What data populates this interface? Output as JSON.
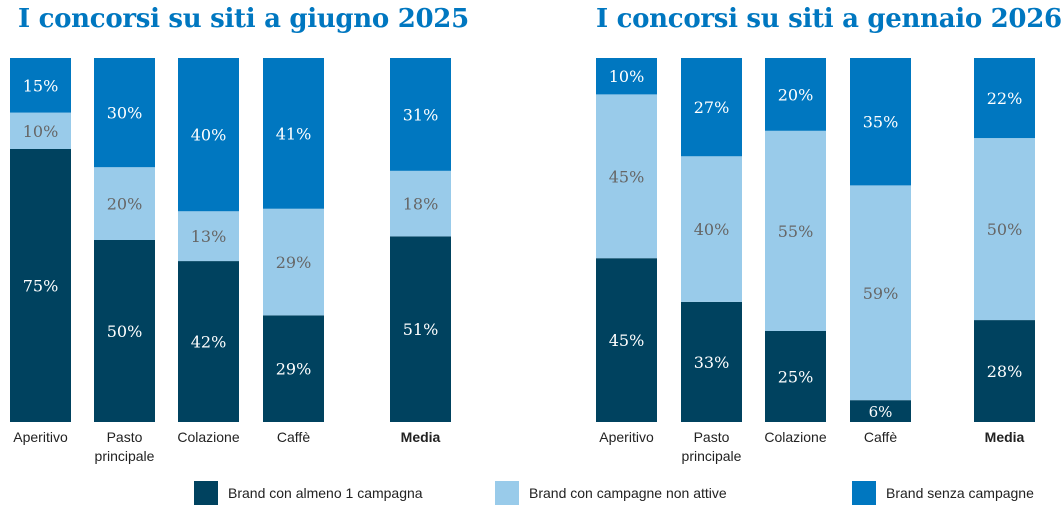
{
  "colors": {
    "active": "#00425f",
    "inactive": "#99cbea",
    "none": "#0077c0"
  },
  "chart_data": [
    {
      "type": "bar",
      "stacked": true,
      "title": "I concorsi su siti a giugno 2025",
      "categories": [
        "Aperitivo",
        "Pasto principale",
        "Colazione",
        "Caffè",
        "Media"
      ],
      "series": [
        {
          "name": "Brand con almeno 1 campagna",
          "values": [
            75,
            50,
            42,
            29,
            51
          ]
        },
        {
          "name": "Brand con campagne non attive",
          "values": [
            10,
            20,
            13,
            29,
            18
          ]
        },
        {
          "name": "Brand senza campagne",
          "values": [
            15,
            30,
            40,
            41,
            31
          ]
        }
      ],
      "ylim": [
        0,
        100
      ]
    },
    {
      "type": "bar",
      "stacked": true,
      "title": "I concorsi su siti a gennaio 2026",
      "categories": [
        "Aperitivo",
        "Pasto principale",
        "Colazione",
        "Caffè",
        "Media"
      ],
      "series": [
        {
          "name": "Brand con almeno 1 campagna",
          "values": [
            45,
            33,
            25,
            6,
            28
          ]
        },
        {
          "name": "Brand con campagne non attive",
          "values": [
            45,
            40,
            55,
            59,
            50
          ]
        },
        {
          "name": "Brand senza campagne",
          "values": [
            10,
            27,
            20,
            35,
            22
          ]
        }
      ],
      "ylim": [
        0,
        100
      ]
    }
  ],
  "legend": [
    "Brand con almeno 1 campagna",
    "Brand con campagne non attive",
    "Brand senza campagne"
  ]
}
